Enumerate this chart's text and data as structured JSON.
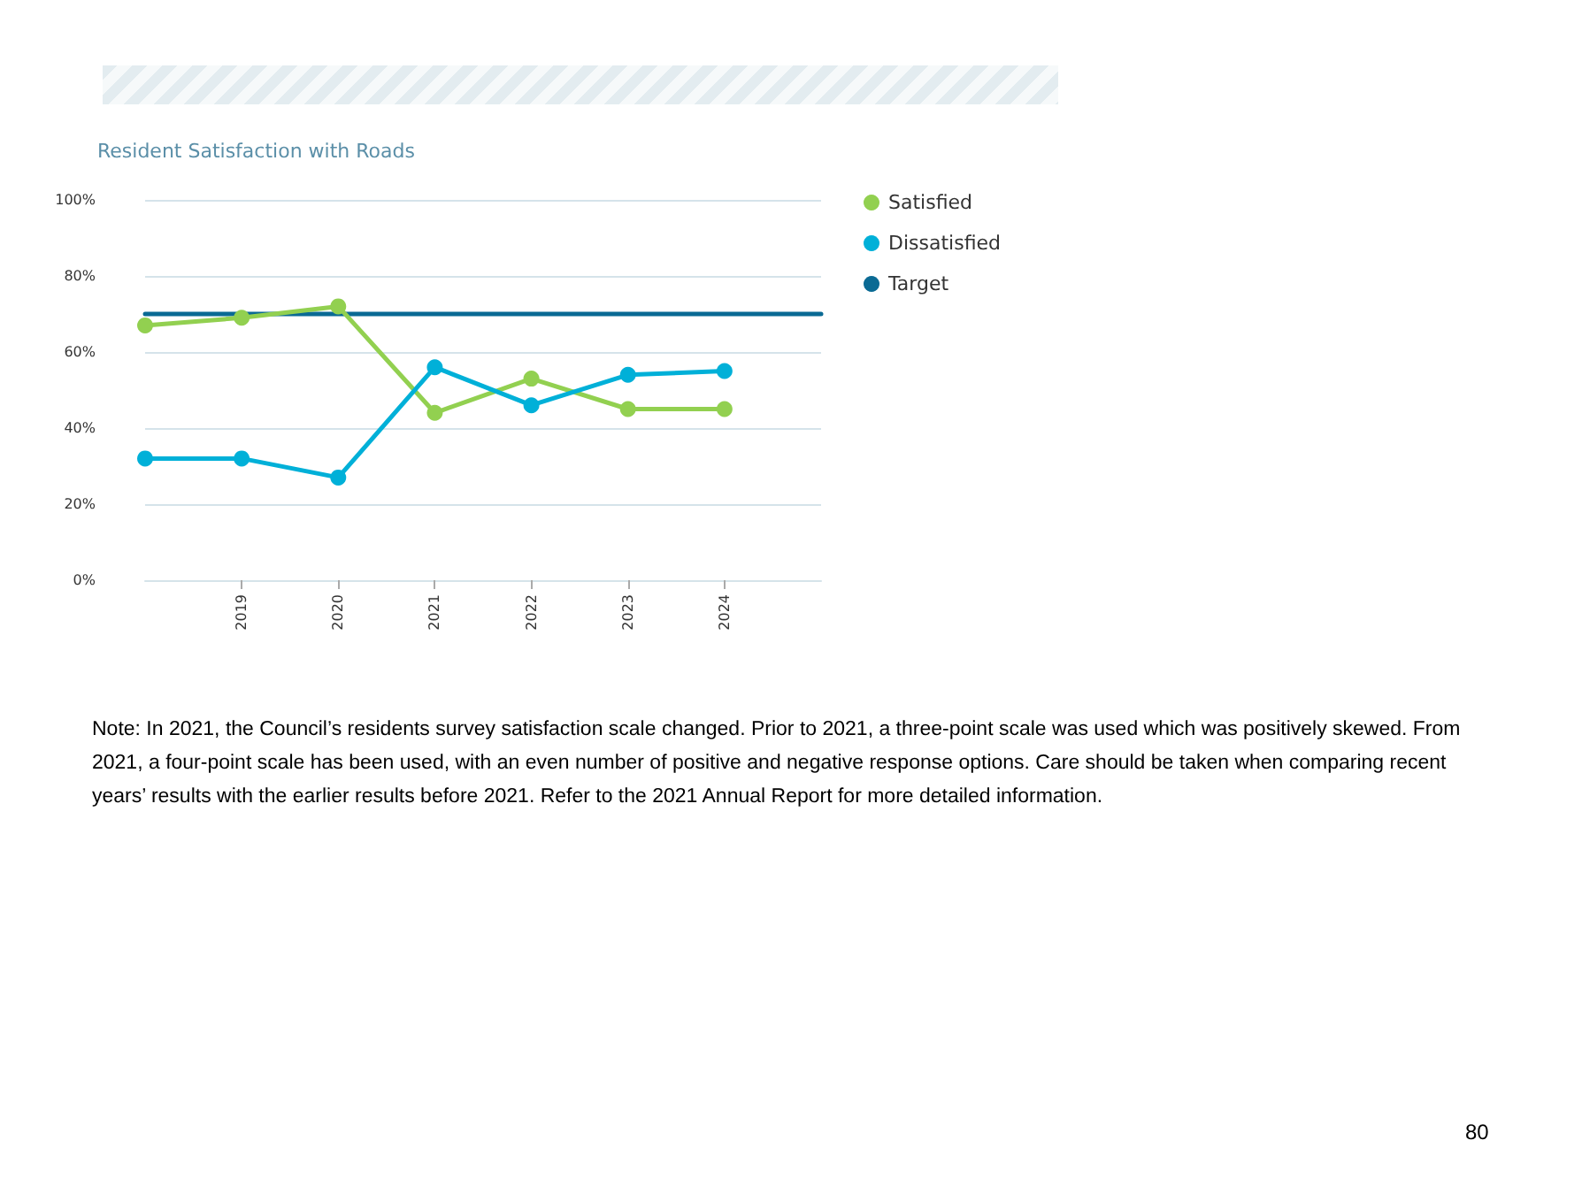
{
  "chart_data": {
    "type": "line",
    "title": "Resident Satisfaction with Roads",
    "categories": [
      null,
      "2019",
      "2020",
      "2021",
      "2022",
      "2023",
      "2024",
      null
    ],
    "series": [
      {
        "name": "Satisfied",
        "color": "#92d050",
        "values": [
          67,
          69,
          72,
          44,
          53,
          45,
          45,
          null
        ]
      },
      {
        "name": "Dissatisfied",
        "color": "#00b0d8",
        "values": [
          32,
          32,
          27,
          56,
          46,
          54,
          55,
          null
        ]
      },
      {
        "name": "Target",
        "color": "#0a6a94",
        "marker": "none",
        "values": [
          70,
          70,
          70,
          70,
          70,
          70,
          70,
          70
        ]
      }
    ],
    "ylim": [
      0,
      100
    ],
    "yticks": [
      {
        "value": 0,
        "label": "0%"
      },
      {
        "value": 20,
        "label": "20%"
      },
      {
        "value": 40,
        "label": "40%"
      },
      {
        "value": 60,
        "label": "60%"
      },
      {
        "value": 80,
        "label": "80%"
      },
      {
        "value": 100,
        "label": "100%"
      }
    ],
    "grid": "y",
    "legend": "right",
    "marker": "circle",
    "line_style": "solid",
    "annotations": [
      "Note: In 2021, the Council’s residents survey satisfaction scale changed. Prior to 2021, a three-point scale was used which was positively skewed. From 2021, a four-point scale has been used, with an even number of positive and negative response options. Care should be taken when comparing recent years’ results with the earlier results before 2021. Refer to the 2021 Annual Report for more detailed information.",
      "80"
    ]
  }
}
